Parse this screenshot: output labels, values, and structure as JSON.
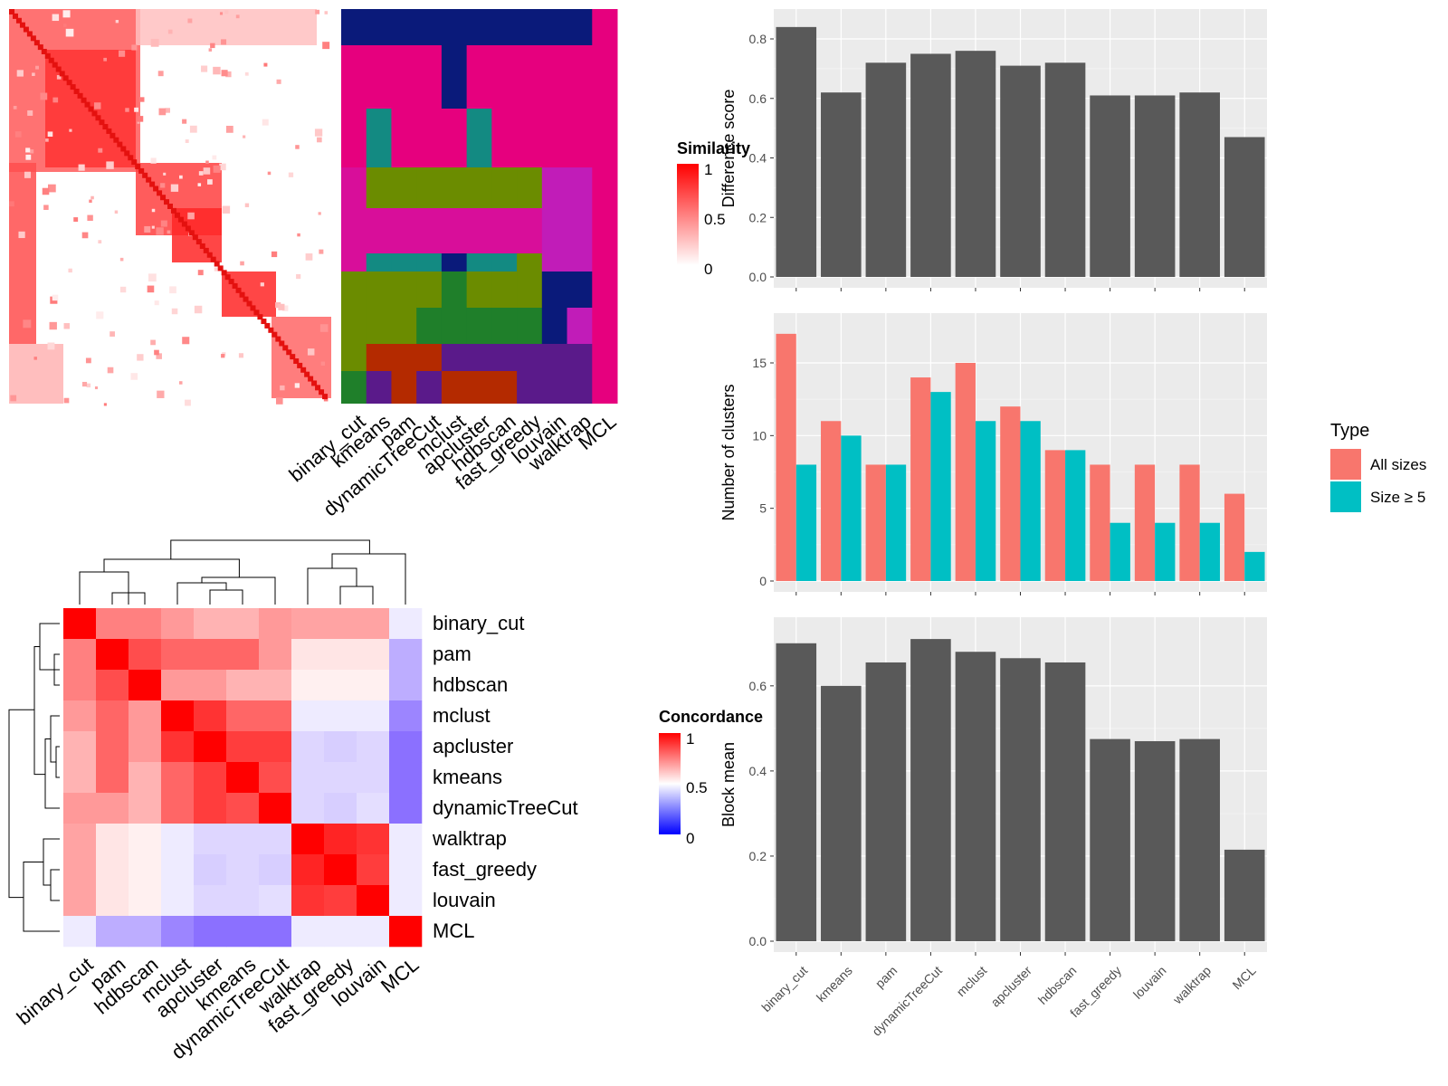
{
  "similarity_heatmap": {
    "legend_title": "Similarity",
    "legend_ticks": [
      "1",
      "0.5",
      "0"
    ],
    "columns": [
      "binary_cut",
      "kmeans",
      "pam",
      "dynamicTreeCut",
      "mclust",
      "apcluster",
      "hdbscan",
      "fast_greedy",
      "louvain",
      "walktrap",
      "MCL"
    ],
    "low_color": "#ffffff",
    "high_color": "#ff0000"
  },
  "concordance_heatmap": {
    "legend_title": "Concordance",
    "legend_ticks": [
      "1",
      "0.5",
      "0"
    ],
    "methods": [
      "binary_cut",
      "pam",
      "hdbscan",
      "mclust",
      "apcluster",
      "kmeans",
      "dynamicTreeCut",
      "walktrap",
      "fast_greedy",
      "louvain",
      "MCL"
    ],
    "matrix": [
      [
        1.0,
        0.75,
        0.75,
        0.7,
        0.65,
        0.65,
        0.7,
        0.68,
        0.68,
        0.68,
        0.45
      ],
      [
        0.75,
        1.0,
        0.85,
        0.8,
        0.8,
        0.8,
        0.7,
        0.55,
        0.55,
        0.55,
        0.3
      ],
      [
        0.75,
        0.85,
        1.0,
        0.7,
        0.7,
        0.65,
        0.65,
        0.53,
        0.53,
        0.53,
        0.3
      ],
      [
        0.7,
        0.8,
        0.7,
        1.0,
        0.9,
        0.8,
        0.8,
        0.45,
        0.45,
        0.45,
        0.2
      ],
      [
        0.65,
        0.8,
        0.7,
        0.9,
        1.0,
        0.88,
        0.88,
        0.4,
        0.38,
        0.4,
        0.15
      ],
      [
        0.65,
        0.8,
        0.65,
        0.8,
        0.88,
        1.0,
        0.85,
        0.4,
        0.4,
        0.4,
        0.15
      ],
      [
        0.7,
        0.7,
        0.65,
        0.8,
        0.88,
        0.85,
        1.0,
        0.4,
        0.38,
        0.42,
        0.15
      ],
      [
        0.68,
        0.55,
        0.53,
        0.45,
        0.4,
        0.4,
        0.4,
        1.0,
        0.93,
        0.9,
        0.45
      ],
      [
        0.68,
        0.55,
        0.53,
        0.45,
        0.38,
        0.4,
        0.38,
        0.93,
        1.0,
        0.88,
        0.45
      ],
      [
        0.68,
        0.55,
        0.53,
        0.45,
        0.4,
        0.4,
        0.42,
        0.9,
        0.88,
        1.0,
        0.45
      ],
      [
        0.45,
        0.3,
        0.3,
        0.2,
        0.15,
        0.15,
        0.15,
        0.45,
        0.45,
        0.45,
        1.0
      ]
    ]
  },
  "bar_panels": {
    "categories": [
      "binary_cut",
      "kmeans",
      "pam",
      "dynamicTreeCut",
      "mclust",
      "apcluster",
      "hdbscan",
      "fast_greedy",
      "louvain",
      "walktrap",
      "MCL"
    ],
    "colors": {
      "bar": "#595959",
      "panel_bg": "#ebebeb",
      "all_sizes": "#f8766d",
      "size_ge5": "#00bfc4"
    }
  },
  "chart_data": [
    {
      "type": "bar",
      "categories": [
        "binary_cut",
        "kmeans",
        "pam",
        "dynamicTreeCut",
        "mclust",
        "apcluster",
        "hdbscan",
        "fast_greedy",
        "louvain",
        "walktrap",
        "MCL"
      ],
      "values": [
        0.84,
        0.62,
        0.72,
        0.75,
        0.76,
        0.71,
        0.72,
        0.61,
        0.61,
        0.62,
        0.47
      ],
      "ylabel": "Difference score",
      "ylim": [
        0,
        0.87
      ],
      "yticks": [
        "0.0",
        "0.2",
        "0.4",
        "0.6",
        "0.8"
      ]
    },
    {
      "type": "bar",
      "categories": [
        "binary_cut",
        "kmeans",
        "pam",
        "dynamicTreeCut",
        "mclust",
        "apcluster",
        "hdbscan",
        "fast_greedy",
        "louvain",
        "walktrap",
        "MCL"
      ],
      "series": [
        {
          "name": "All sizes",
          "values": [
            17,
            11,
            8,
            14,
            15,
            12,
            9,
            8,
            8,
            8,
            6
          ]
        },
        {
          "name": "Size ≥ 5",
          "values": [
            8,
            10,
            8,
            13,
            11,
            11,
            9,
            4,
            4,
            4,
            2
          ]
        }
      ],
      "ylabel": "Number of clusters",
      "ylim": [
        0,
        17.8
      ],
      "yticks": [
        "0",
        "5",
        "10",
        "15"
      ],
      "legend_title": "Type",
      "legend_position": "right"
    },
    {
      "type": "bar",
      "categories": [
        "binary_cut",
        "kmeans",
        "pam",
        "dynamicTreeCut",
        "mclust",
        "apcluster",
        "hdbscan",
        "fast_greedy",
        "louvain",
        "walktrap",
        "MCL"
      ],
      "values": [
        0.7,
        0.6,
        0.655,
        0.71,
        0.68,
        0.665,
        0.655,
        0.475,
        0.47,
        0.475,
        0.215
      ],
      "ylabel": "Block mean",
      "ylim": [
        0,
        0.74
      ],
      "yticks": [
        "0.0",
        "0.2",
        "0.4",
        "0.6"
      ]
    }
  ]
}
